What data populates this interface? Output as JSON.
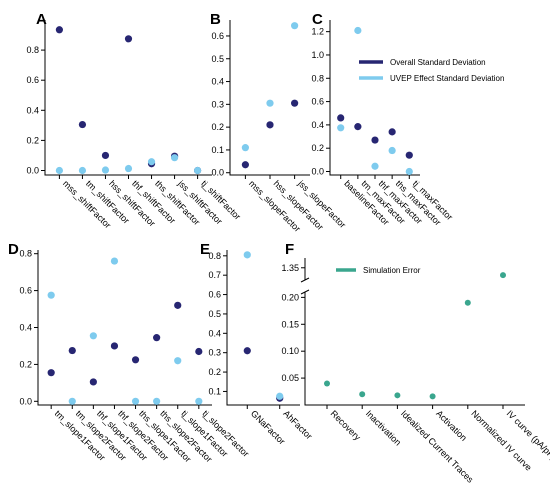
{
  "colors": {
    "overall": "#272672",
    "uvep": "#7ecbee",
    "sim": "#3aa68e"
  },
  "legend_main": [
    {
      "label": "Overall Standard Deviation",
      "color_key": "overall"
    },
    {
      "label": "UVEP Effect Standard Deviation",
      "color_key": "uvep"
    }
  ],
  "legend_f": {
    "label": "Simulation Error",
    "color_key": "sim"
  },
  "chart_data": [
    {
      "panel": "A",
      "type": "scatter",
      "categories": [
        "mss_shiftFactor",
        "tm_shiftFactor",
        "hss_shiftFactor",
        "thf_shiftFactor",
        "ths_shiftFactor",
        "jss_shiftFactor",
        "tj_shiftFactor"
      ],
      "ylim": [
        -0.03,
        1.0
      ],
      "yticks": [
        "0.0",
        "0.2",
        "0.4",
        "0.6",
        "0.8"
      ],
      "ytick_values": [
        0,
        0.2,
        0.4,
        0.6,
        0.8
      ],
      "series": [
        {
          "series_key": "overall",
          "values": [
            0.935,
            0.305,
            0.1,
            0.875,
            0.045,
            0.095,
            0.0
          ]
        },
        {
          "series_key": "uvep",
          "values": [
            0.0,
            0.0,
            0.003,
            0.013,
            0.058,
            0.085,
            0.0
          ]
        }
      ]
    },
    {
      "panel": "B",
      "type": "scatter",
      "categories": [
        "mss_slopeFactor",
        "hss_slopeFactor",
        "jss_slopeFactor"
      ],
      "ylim": [
        -0.01,
        0.67
      ],
      "yticks": [
        "0.0",
        "0.1",
        "0.2",
        "0.3",
        "0.4",
        "0.5",
        "0.6"
      ],
      "ytick_values": [
        0,
        0.1,
        0.2,
        0.3,
        0.4,
        0.5,
        0.6
      ],
      "series": [
        {
          "series_key": "overall",
          "values": [
            0.035,
            0.21,
            0.305
          ]
        },
        {
          "series_key": "uvep",
          "values": [
            0.11,
            0.305,
            0.645
          ]
        }
      ]
    },
    {
      "panel": "C",
      "type": "scatter",
      "categories": [
        "baselineFactor",
        "tm_maxFactor",
        "thf_maxFactor",
        "ths_maxFactor",
        "tj_maxFactor"
      ],
      "ylim": [
        -0.03,
        1.3
      ],
      "yticks": [
        "0.0",
        "0.2",
        "0.4",
        "0.6",
        "0.8",
        "1.0",
        "1.2"
      ],
      "ytick_values": [
        0,
        0.2,
        0.4,
        0.6,
        0.8,
        1.0,
        1.2
      ],
      "series": [
        {
          "series_key": "overall",
          "values": [
            0.46,
            0.385,
            0.27,
            0.34,
            0.14
          ]
        },
        {
          "series_key": "uvep",
          "values": [
            0.375,
            1.21,
            0.045,
            0.18,
            0.0
          ]
        }
      ]
    },
    {
      "panel": "D",
      "type": "scatter",
      "categories": [
        "tm_slope1Factor",
        "tm_slope2Factor",
        "thf_slope1Factor",
        "thf_slope2Factor",
        "ths_slope1Factor",
        "ths_slope2Factor",
        "tj_slope1Factor",
        "tj_slope2Factor"
      ],
      "ylim": [
        -0.02,
        0.82
      ],
      "yticks": [
        "0.0",
        "0.2",
        "0.4",
        "0.6",
        "0.8"
      ],
      "ytick_values": [
        0,
        0.2,
        0.4,
        0.6,
        0.8
      ],
      "series": [
        {
          "series_key": "overall",
          "values": [
            0.155,
            0.275,
            0.105,
            0.3,
            0.225,
            0.345,
            0.52,
            0.27
          ]
        },
        {
          "series_key": "uvep",
          "values": [
            0.575,
            0.0,
            0.355,
            0.76,
            0.0,
            0.0,
            0.22,
            0.0
          ]
        }
      ]
    },
    {
      "panel": "E",
      "type": "scatter",
      "categories": [
        "GNaFactor",
        "AhFactor"
      ],
      "ylim": [
        0.03,
        0.83
      ],
      "yticks": [
        "0.1",
        "0.2",
        "0.3",
        "0.4",
        "0.5",
        "0.6",
        "0.7",
        "0.8"
      ],
      "ytick_values": [
        0.1,
        0.2,
        0.3,
        0.4,
        0.5,
        0.6,
        0.7,
        0.8
      ],
      "series": [
        {
          "series_key": "overall",
          "values": [
            0.31,
            0.065
          ]
        },
        {
          "series_key": "uvep",
          "values": [
            0.805,
            0.075
          ]
        }
      ]
    },
    {
      "panel": "F",
      "type": "scatter",
      "categories": [
        "Recovery",
        "Inactivation",
        "Idealized Current Traces",
        "Activation",
        "Normalized IV curve",
        "IV curve (pA/pF)"
      ],
      "broken_axis": true,
      "lower_yticks": [
        "0.05",
        "0.10",
        "0.15",
        "0.20"
      ],
      "lower_ytick_values": [
        0.05,
        0.1,
        0.15,
        0.2
      ],
      "upper_yticks": [
        "1.35"
      ],
      "upper_ytick_values": [
        1.35
      ],
      "series": [
        {
          "series_key": "sim",
          "values": [
            0.04,
            0.02,
            0.018,
            0.016,
            0.19,
            1.335
          ]
        }
      ]
    }
  ]
}
